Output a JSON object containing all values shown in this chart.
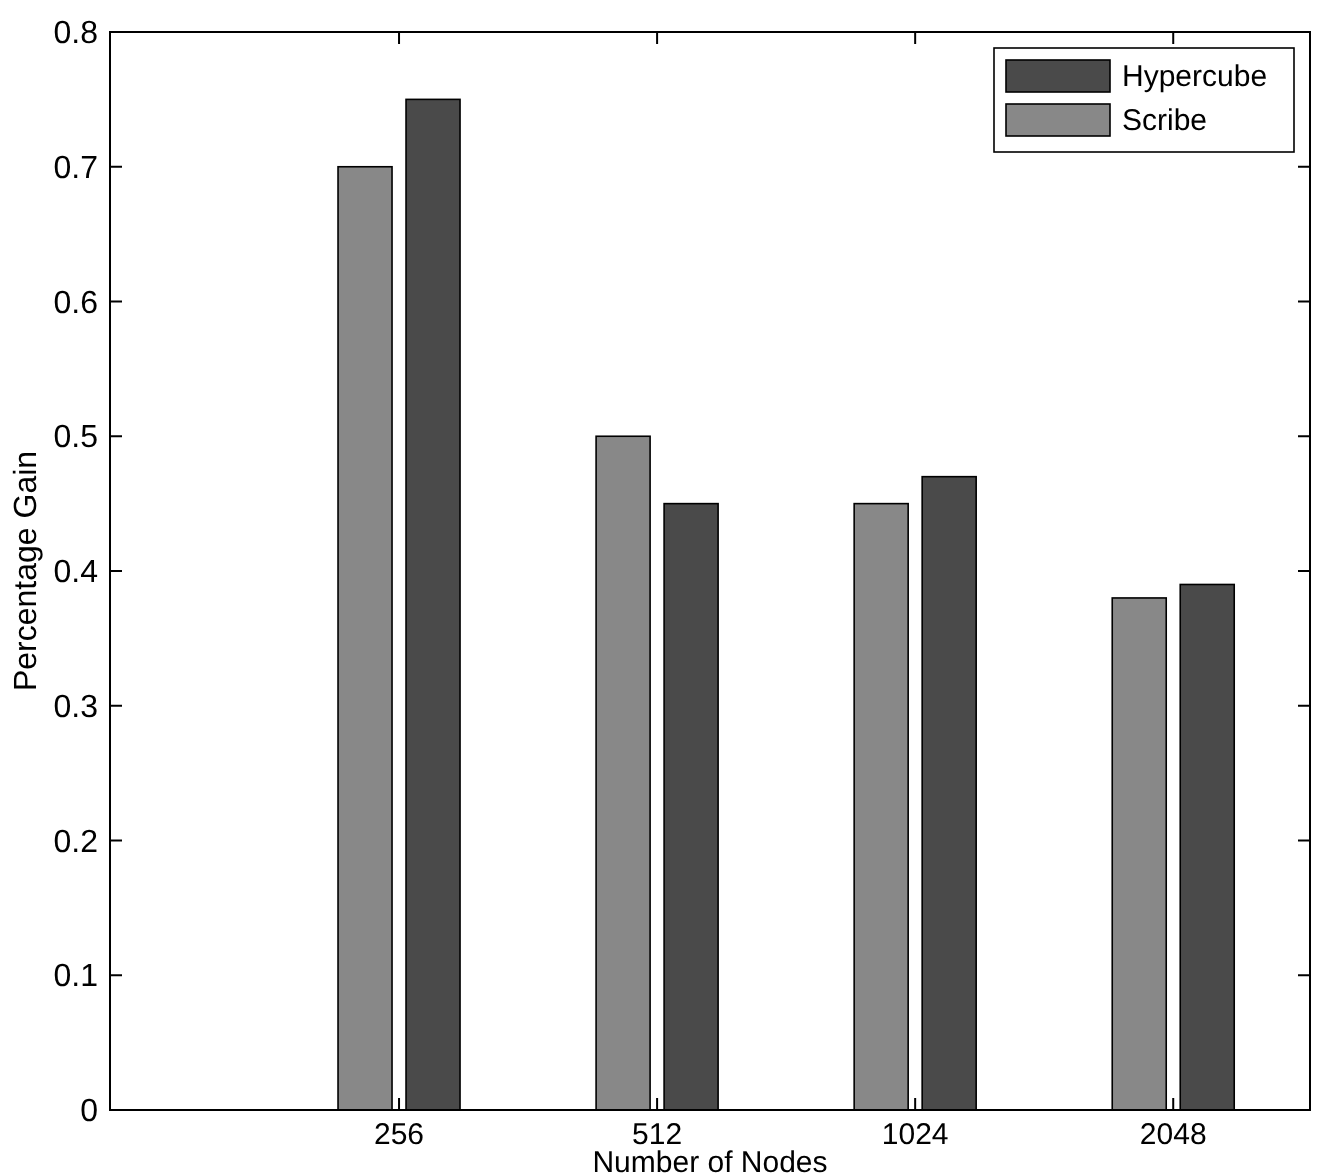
{
  "chart_data": {
    "type": "bar",
    "xlabel": "Number of Nodes",
    "ylabel": "Percentage Gain",
    "categories": [
      "256",
      "512",
      "1024",
      "2048"
    ],
    "series": [
      {
        "name": "Scribe",
        "color": "#888888",
        "values": [
          0.7,
          0.5,
          0.45,
          0.38
        ]
      },
      {
        "name": "Hypercube",
        "color": "#4a4a4a",
        "values": [
          0.75,
          0.45,
          0.47,
          0.39
        ]
      }
    ],
    "ylim": [
      0,
      0.8
    ],
    "yticks": [
      {
        "value": 0,
        "label": "0"
      },
      0.1,
      0.2,
      0.3,
      0.4,
      0.5,
      0.6,
      0.7,
      0.8
    ],
    "grid": false,
    "legend": "top right"
  }
}
